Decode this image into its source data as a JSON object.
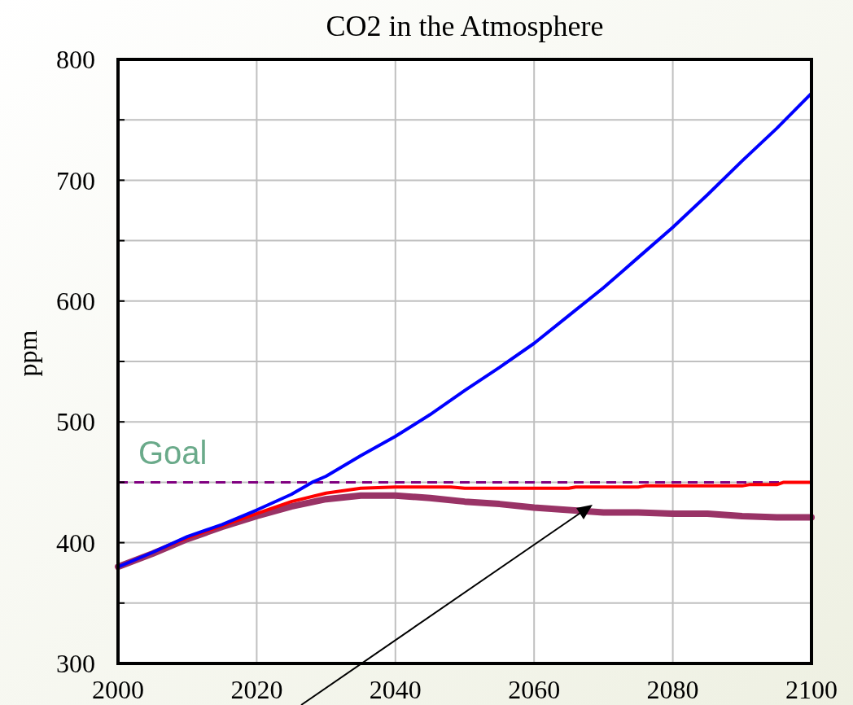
{
  "chart_data": {
    "type": "line",
    "title": "CO2 in the Atmosphere",
    "ylabel": "ppm",
    "xlim": [
      2000,
      2100
    ],
    "xticks": [
      2000,
      2020,
      2040,
      2060,
      2080,
      2100
    ],
    "ylim": [
      300,
      800
    ],
    "yticks": [
      300,
      {
        "value": 350,
        "label": null
      },
      400,
      {
        "value": 450,
        "label": null
      },
      500,
      {
        "value": 550,
        "label": null
      },
      600,
      {
        "value": 650,
        "label": null
      },
      700,
      {
        "value": 750,
        "label": null
      },
      800
    ],
    "grid": true,
    "series": [
      {
        "color": "#0000ff",
        "x": [
          2000,
          2005,
          2010,
          2015,
          2020,
          2025,
          2028,
          2030,
          2035,
          2040,
          2045,
          2050,
          2055,
          2060,
          2065,
          2070,
          2075,
          2080,
          2085,
          2090,
          2095,
          2100
        ],
        "values": [
          380,
          392,
          405,
          415,
          427,
          440,
          450,
          455,
          472,
          488,
          506,
          526,
          545,
          565,
          588,
          611,
          636,
          661,
          688,
          716,
          743,
          772
        ]
      },
      {
        "color": "#ff0000",
        "x": [
          2000,
          2005,
          2010,
          2015,
          2020,
          2025,
          2030,
          2035,
          2040,
          2045,
          2048,
          2050,
          2060,
          2065,
          2066,
          2075,
          2076,
          2090,
          2091,
          2095,
          2096,
          2100
        ],
        "values": [
          380,
          392,
          404,
          414,
          424,
          434,
          441,
          445,
          446,
          446,
          446,
          445,
          445,
          445,
          446,
          446,
          447,
          447,
          448,
          448,
          450,
          450
        ]
      },
      {
        "color": "#993366",
        "x": [
          2000,
          2005,
          2010,
          2015,
          2020,
          2025,
          2030,
          2035,
          2040,
          2045,
          2050,
          2055,
          2060,
          2065,
          2070,
          2075,
          2080,
          2085,
          2090,
          2095,
          2100
        ],
        "values": [
          380,
          391,
          403,
          413,
          422,
          430,
          436,
          439,
          439,
          437,
          434,
          432,
          429,
          427,
          425,
          425,
          424,
          424,
          422,
          421,
          421
        ]
      }
    ],
    "ref_lines": [
      {
        "axis": "y",
        "value": 450,
        "label": "Goal",
        "color": "#800080",
        "line_style": "dashed"
      }
    ]
  }
}
